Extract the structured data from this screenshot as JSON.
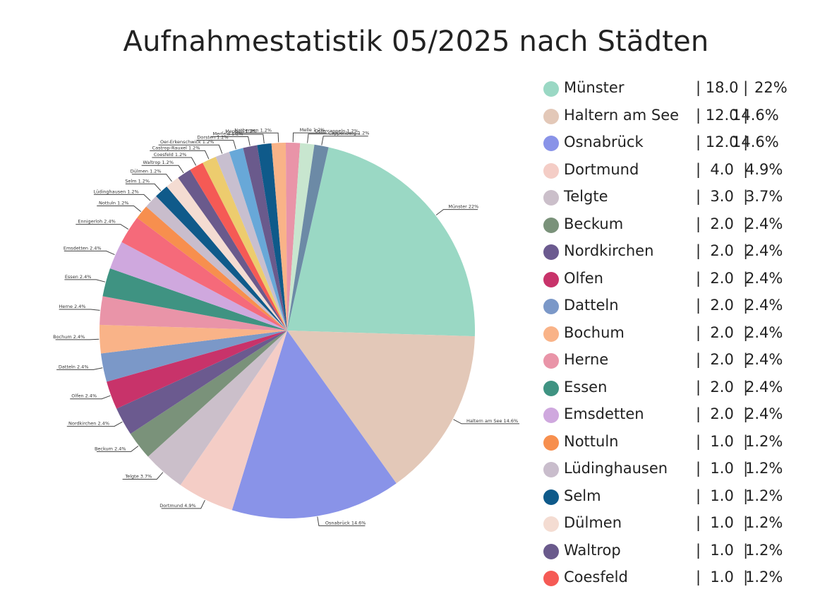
{
  "chart_data": {
    "type": "pie",
    "title": "Aufnahmestatistik 05/2025 nach Städten",
    "slices": [
      {
        "name": "Münster",
        "value": 18.0,
        "value_label": "| 18.0 |",
        "percent_label": "22%",
        "callout": "Münster 22%",
        "color": "#9ad8c4"
      },
      {
        "name": "Haltern am See",
        "value": 12.0,
        "value_label": "| 12.0 |",
        "percent_label": "14.6%",
        "callout": "Haltern am See 14.6%",
        "color": "#e3c8b8"
      },
      {
        "name": "Osnabrück",
        "value": 12.0,
        "value_label": "| 12.0 |",
        "percent_label": "14.6%",
        "callout": "Osnabrück 14.6%",
        "color": "#8993e8"
      },
      {
        "name": "Dortmund",
        "value": 4.0,
        "value_label": "|  4.0  |",
        "percent_label": "4.9%",
        "callout": "Dortmund 4.9%",
        "color": "#f4cdc6"
      },
      {
        "name": "Telgte",
        "value": 3.0,
        "value_label": "|  3.0  |",
        "percent_label": "3.7%",
        "callout": "Telgte 3.7%",
        "color": "#cbbfca"
      },
      {
        "name": "Beckum",
        "value": 2.0,
        "value_label": "|  2.0  |",
        "percent_label": "2.4%",
        "callout": "Beckum 2.4%",
        "color": "#7a927a"
      },
      {
        "name": "Nordkirchen",
        "value": 2.0,
        "value_label": "|  2.0  |",
        "percent_label": "2.4%",
        "callout": "Nordkirchen 2.4%",
        "color": "#6b5a8f"
      },
      {
        "name": "Olfen",
        "value": 2.0,
        "value_label": "|  2.0  |",
        "percent_label": "2.4%",
        "callout": "Olfen 2.4%",
        "color": "#c8336a"
      },
      {
        "name": "Datteln",
        "value": 2.0,
        "value_label": "|  2.0  |",
        "percent_label": "2.4%",
        "callout": "Datteln 2.4%",
        "color": "#7b98c8"
      },
      {
        "name": "Bochum",
        "value": 2.0,
        "value_label": "|  2.0  |",
        "percent_label": "2.4%",
        "callout": "Bochum 2.4%",
        "color": "#f9b388"
      },
      {
        "name": "Herne",
        "value": 2.0,
        "value_label": "|  2.0  |",
        "percent_label": "2.4%",
        "callout": "Herne 2.4%",
        "color": "#e994a8"
      },
      {
        "name": "Essen",
        "value": 2.0,
        "value_label": "|  2.0  |",
        "percent_label": "2.4%",
        "callout": "Essen 2.4%",
        "color": "#3f9382"
      },
      {
        "name": "Emsdetten",
        "value": 2.0,
        "value_label": "|  2.0  |",
        "percent_label": "2.4%",
        "callout": "Emsdetten 2.4%",
        "color": "#cfa8de"
      },
      {
        "name": "Ennigerloh",
        "value": 2.0,
        "value_label": "",
        "percent_label": "",
        "callout": "Ennigerloh 2.4%",
        "color": "#f56a7a"
      },
      {
        "name": "Nottuln",
        "value": 1.0,
        "value_label": "|  1.0  |",
        "percent_label": "1.2%",
        "callout": "Nottuln 1.2%",
        "color": "#f78f4e"
      },
      {
        "name": "Lüdinghausen",
        "value": 1.0,
        "value_label": "|  1.0  |",
        "percent_label": "1.2%",
        "callout": "Lüdinghausen 1.2%",
        "color": "#c9bdcc"
      },
      {
        "name": "Selm",
        "value": 1.0,
        "value_label": "|  1.0  |",
        "percent_label": "1.2%",
        "callout": "Selm 1.2%",
        "color": "#0f5a8a"
      },
      {
        "name": "Dülmen",
        "value": 1.0,
        "value_label": "|  1.0  |",
        "percent_label": "1.2%",
        "callout": "Dülmen 1.2%",
        "color": "#f4dcd2"
      },
      {
        "name": "Waltrop",
        "value": 1.0,
        "value_label": "|  1.0  |",
        "percent_label": "1.2%",
        "callout": "Waltrop 1.2%",
        "color": "#6a5a8c"
      },
      {
        "name": "Coesfeld",
        "value": 1.0,
        "value_label": "|  1.0  |",
        "percent_label": "1.2%",
        "callout": "Coesfeld 1.2%",
        "color": "#f55a55"
      },
      {
        "name": "Castrop-Rauxel",
        "value": 1.0,
        "value_label": "",
        "percent_label": "",
        "callout": "Castrop-Rauxel 1.2%",
        "color": "#edcc6e"
      },
      {
        "name": "Oer-Erkenschwick",
        "value": 1.0,
        "value_label": "",
        "percent_label": "",
        "callout": "Oer-Erkenschwick 1.2%",
        "color": "#c8bfcf"
      },
      {
        "name": "Dorsten",
        "value": 1.0,
        "value_label": "",
        "percent_label": "",
        "callout": "Dorsten 1.2%",
        "color": "#68a8d8"
      },
      {
        "name": "Merfeld",
        "value": 1.0,
        "value_label": "",
        "percent_label": "",
        "callout": "Merfeld 1.2%",
        "color": "#6a5a8c"
      },
      {
        "name": "Meppen",
        "value": 1.0,
        "value_label": "",
        "percent_label": "",
        "callout": "Meppen 1.2%",
        "color": "#0f5a8a"
      },
      {
        "name": "Natbergen",
        "value": 1.0,
        "value_label": "",
        "percent_label": "",
        "callout": "Natbergen 1.2%",
        "color": "#f9b388"
      },
      {
        "name": "Melle",
        "value": 1.0,
        "value_label": "",
        "percent_label": "",
        "callout": "Melle 1.2%",
        "color": "#e994a8"
      },
      {
        "name": "Ostercappeln",
        "value": 1.0,
        "value_label": "",
        "percent_label": "",
        "callout": "Ostercappeln 1.2%",
        "color": "#c8e6cf"
      },
      {
        "name": "Cappenberg",
        "value": 1.0,
        "value_label": "",
        "percent_label": "",
        "callout": "Cappenberg 1.2%",
        "color": "#6c8aa6"
      }
    ],
    "legend_position": "right"
  }
}
